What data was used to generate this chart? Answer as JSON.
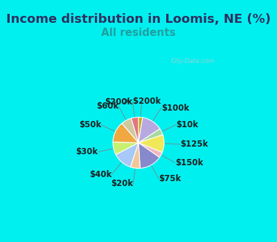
{
  "title": "Income distribution in Loomis, NE (%)",
  "subtitle": "All residents",
  "title_color": "#303060",
  "subtitle_color": "#20a0a0",
  "title_fontsize": 13,
  "subtitle_fontsize": 11,
  "bg_top": "#00f0f0",
  "bg_chart": "#e8f8f0",
  "watermark": "City-Data.com",
  "segments": [
    {
      "label": "> $200k",
      "value": 2.5,
      "color": "#c8a800"
    },
    {
      "label": "$100k",
      "value": 13.0,
      "color": "#b8a8e0"
    },
    {
      "label": "$10k",
      "value": 4.0,
      "color": "#a8d8a0"
    },
    {
      "label": "$125k",
      "value": 11.0,
      "color": "#f0e858"
    },
    {
      "label": "$150k",
      "value": 3.5,
      "color": "#f0b8c0"
    },
    {
      "label": "$75k",
      "value": 14.0,
      "color": "#8888cc"
    },
    {
      "label": "$20k",
      "value": 6.0,
      "color": "#f0c898"
    },
    {
      "label": "$40k",
      "value": 12.0,
      "color": "#a8c8f8"
    },
    {
      "label": "$30k",
      "value": 8.0,
      "color": "#c8f070"
    },
    {
      "label": "$50k",
      "value": 13.0,
      "color": "#f0a840"
    },
    {
      "label": "$60k",
      "value": 6.5,
      "color": "#d0c8a0"
    },
    {
      "label": "$200k",
      "value": 4.5,
      "color": "#e07880"
    }
  ],
  "label_fontsize": 8.5,
  "label_color": "#202020"
}
